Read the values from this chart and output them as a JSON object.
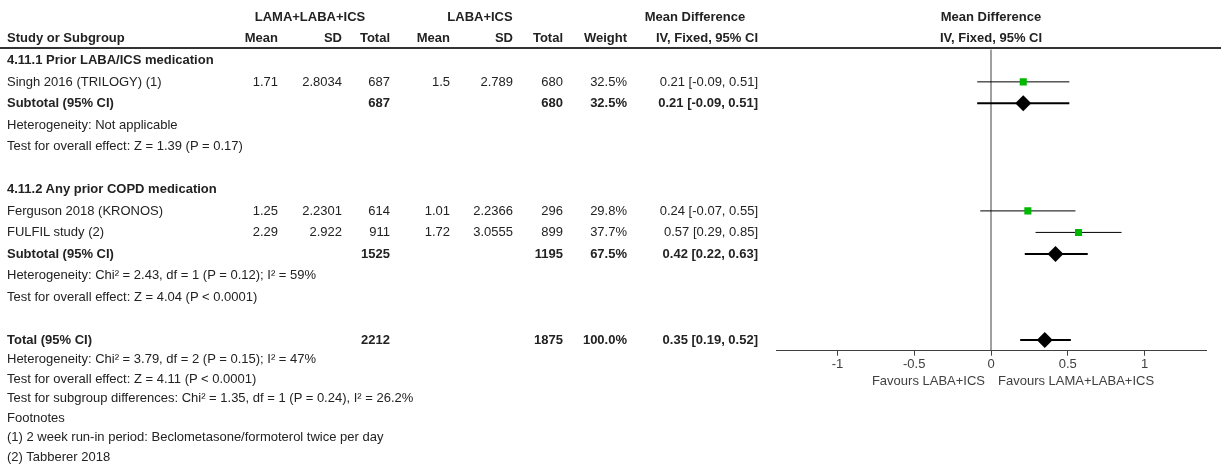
{
  "chart_data": [
    {
      "type": "other",
      "annotations": [
        "LAMA+LABA+ICS",
        "LABA+ICS",
        "Mean Difference"
      ],
      "categories": [
        "Study or Subgroup",
        "Mean",
        "SD",
        "Total",
        "Mean",
        "SD",
        "Total",
        "Weight",
        "IV, Fixed, 95% CI"
      ],
      "cell_labels": [
        [
          "4.11.1 Prior LABA/ICS medication",
          null,
          null,
          null,
          null,
          null,
          null,
          null,
          null
        ],
        [
          "Singh 2016 (TRILOGY) (1)",
          "1.71",
          "2.8034",
          "687",
          "1.5",
          "2.789",
          "680",
          "32.5%",
          "0.21 [-0.09, 0.51]"
        ],
        [
          "Subtotal (95% CI)",
          null,
          null,
          "687",
          null,
          null,
          "680",
          "32.5%",
          "0.21 [-0.09, 0.51]"
        ],
        [
          "Heterogeneity: Not applicable",
          null,
          null,
          null,
          null,
          null,
          null,
          null,
          null
        ],
        [
          "Test for overall effect: Z = 1.39 (P = 0.17)",
          null,
          null,
          null,
          null,
          null,
          null,
          null,
          null
        ],
        [
          null,
          null,
          null,
          null,
          null,
          null,
          null,
          null,
          null
        ],
        [
          "4.11.2 Any prior COPD medication",
          null,
          null,
          null,
          null,
          null,
          null,
          null,
          null
        ],
        [
          "Ferguson 2018 (KRONOS)",
          "1.25",
          "2.2301",
          "614",
          "1.01",
          "2.2366",
          "296",
          "29.8%",
          "0.24 [-0.07, 0.55]"
        ],
        [
          "FULFIL study (2)",
          "2.29",
          "2.922",
          "911",
          "1.72",
          "3.0555",
          "899",
          "37.7%",
          "0.57 [0.29, 0.85]"
        ],
        [
          "Subtotal (95% CI)",
          null,
          null,
          "1525",
          null,
          null,
          "1195",
          "67.5%",
          "0.42 [0.22, 0.63]"
        ],
        [
          "Heterogeneity: Chi² = 2.43, df = 1 (P = 0.12); I² = 59%",
          null,
          null,
          null,
          null,
          null,
          null,
          null,
          null
        ],
        [
          "Test for overall effect: Z = 4.04 (P < 0.0001)",
          null,
          null,
          null,
          null,
          null,
          null,
          null,
          null
        ],
        [
          null,
          null,
          null,
          null,
          null,
          null,
          null,
          null,
          null
        ],
        [
          "Total (95% CI)",
          null,
          null,
          "2212",
          null,
          null,
          "1875",
          "100.0%",
          "0.35 [0.19, 0.52]"
        ],
        [
          "Heterogeneity: Chi² = 3.79, df = 2 (P = 0.15); I² = 47%",
          null,
          null,
          null,
          null,
          null,
          null,
          null,
          null
        ],
        [
          "Test for overall effect: Z = 4.11 (P < 0.0001)",
          null,
          null,
          null,
          null,
          null,
          null,
          null,
          null
        ],
        [
          "Test for subgroup differences: Chi² = 1.35, df = 1 (P = 0.24), I² = 26.2%",
          null,
          null,
          null,
          null,
          null,
          null,
          null,
          null
        ],
        [
          "Footnotes",
          null,
          null,
          null,
          null,
          null,
          null,
          null,
          null
        ],
        [
          "(1) 2 week run-in period: Beclometasone/formoterol twice per day",
          null,
          null,
          null,
          null,
          null,
          null,
          null,
          null
        ],
        [
          "(2) Tabberer 2018",
          null,
          null,
          null,
          null,
          null,
          null,
          null,
          null
        ]
      ]
    },
    {
      "type": "scatter",
      "title": "Mean Difference",
      "subtitle": "IV, Fixed, 95% CI",
      "orientation": "horizontal",
      "categories": [
        null,
        null,
        null,
        null,
        null,
        null,
        null,
        null,
        null,
        null,
        null,
        null,
        null,
        null
      ],
      "series": [
        {
          "type": "scatter",
          "marker": "square",
          "color": "#00b800",
          "values": [
            null,
            0.21,
            null,
            null,
            null,
            null,
            null,
            0.24,
            0.57,
            null,
            null,
            null,
            null,
            null
          ],
          "errors": [
            null,
            [
              -0.09,
              0.51
            ],
            null,
            null,
            null,
            null,
            null,
            [
              -0.07,
              0.55
            ],
            [
              0.29,
              0.85
            ],
            null,
            null,
            null,
            null,
            null
          ]
        },
        {
          "type": "scatter",
          "marker": "diamond",
          "color": "#000000",
          "values": [
            null,
            null,
            0.21,
            null,
            null,
            null,
            null,
            null,
            null,
            0.42,
            null,
            null,
            null,
            0.35
          ],
          "errors": [
            null,
            null,
            [
              -0.09,
              0.51
            ],
            null,
            null,
            null,
            null,
            null,
            null,
            [
              0.22,
              0.63
            ],
            null,
            null,
            null,
            [
              0.19,
              0.52
            ]
          ]
        }
      ],
      "xlim": [
        -1.4,
        1.4
      ],
      "xticks": [
        -1,
        -0.5,
        0,
        0.5,
        1
      ],
      "ref_lines": [
        {
          "axis": "x",
          "value": 0,
          "color": "#404040"
        }
      ],
      "annotations": [
        "Favours LABA+ICS",
        "Favours LAMA+LABA+ICS"
      ]
    }
  ]
}
